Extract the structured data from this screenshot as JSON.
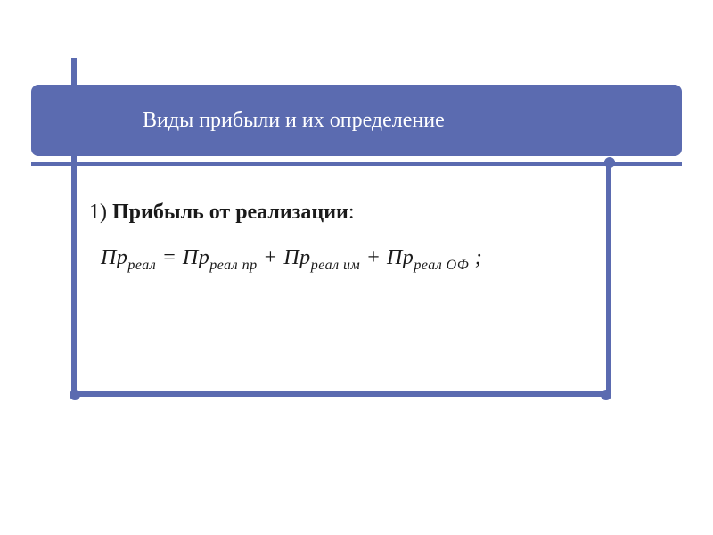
{
  "colors": {
    "accent": "#5b6bb0",
    "background": "#ffffff",
    "title_text": "#ffffff",
    "body_text": "#1a1a1a"
  },
  "typography": {
    "title_fontsize_pt": 18,
    "body_fontsize_pt": 18,
    "subscript_fontsize_pt": 12,
    "font_family": "serif"
  },
  "title": "Виды прибыли и их определение",
  "body": {
    "line1_prefix": "1) ",
    "line1_bold": "Прибыль от реализации",
    "line1_suffix": ":",
    "formula": {
      "lhs_base": "Пр",
      "lhs_sub": "реал",
      "eq": " = ",
      "t1_base": "Пр",
      "t1_sub": "реал пр",
      "plus1": " + ",
      "t2_base": "Пр",
      "t2_sub": "реал им",
      "plus2": " + ",
      "t3_base": "Пр",
      "t3_sub": "реал ОФ",
      "term_end": "  ;"
    }
  }
}
